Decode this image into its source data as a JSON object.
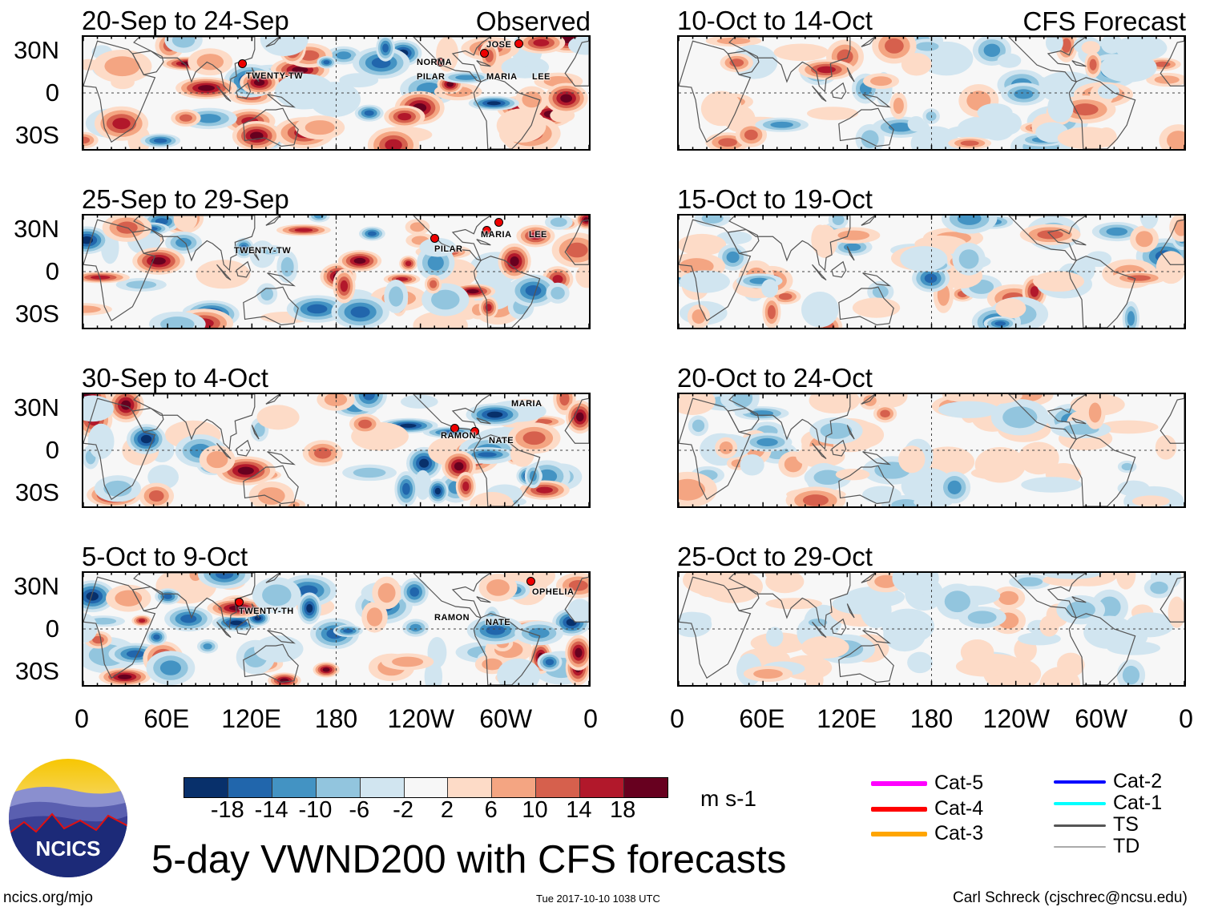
{
  "chart_data": {
    "type": "heatmap",
    "title": "5-day VWND200 with CFS forecasts",
    "variable": "200 hPa meridional wind",
    "units": "m s-1",
    "lat_ticks": [
      "30N",
      "0",
      "30S"
    ],
    "lon_ticks": [
      "0",
      "60E",
      "120E",
      "180",
      "120W",
      "60W",
      "0"
    ],
    "colorbar": {
      "levels": [
        "-18",
        "-14",
        "-10",
        "-6",
        "-2",
        "2",
        "6",
        "10",
        "14",
        "18"
      ],
      "colors": [
        "#08306b",
        "#2166ac",
        "#4393c3",
        "#92c5de",
        "#d1e5f0",
        "#f7f7f7",
        "#fddbc7",
        "#f4a582",
        "#d6604d",
        "#b2182b",
        "#67001f"
      ]
    },
    "columns": [
      {
        "label": "Observed",
        "panels": [
          {
            "title": "20-Sep to 24-Sep",
            "storms": [
              "TWENTY-TW",
              "NORMA",
              "PILAR",
              "JOSE",
              "MARIA",
              "LEE"
            ]
          },
          {
            "title": "25-Sep to 29-Sep",
            "storms": [
              "TWENTY-TW",
              "PILAR",
              "MARIA",
              "LEE"
            ]
          },
          {
            "title": "30-Sep to 4-Oct",
            "storms": [
              "MARIA",
              "RAMON",
              "NATE"
            ]
          },
          {
            "title": "5-Oct to 9-Oct",
            "storms": [
              "TWENTY-TH",
              "RAMON",
              "NATE",
              "OPHELIA"
            ]
          }
        ]
      },
      {
        "label": "CFS Forecast",
        "panels": [
          {
            "title": "10-Oct to 14-Oct",
            "storms": []
          },
          {
            "title": "15-Oct to 19-Oct",
            "storms": []
          },
          {
            "title": "20-Oct to 24-Oct",
            "storms": []
          },
          {
            "title": "25-Oct to 29-Oct",
            "storms": []
          }
        ]
      }
    ],
    "legend": [
      {
        "label": "Cat-5",
        "color": "#ff00ff"
      },
      {
        "label": "Cat-4",
        "color": "#ff0000"
      },
      {
        "label": "Cat-3",
        "color": "#ffa500"
      },
      {
        "label": "Cat-2",
        "color": "#0000ff"
      },
      {
        "label": "Cat-1",
        "color": "#00ffff"
      },
      {
        "label": "TS",
        "color": "#555555"
      },
      {
        "label": "TD",
        "color": "#aaaaaa"
      }
    ]
  },
  "logo": {
    "text": "NCICS"
  },
  "footer": {
    "left": "ncics.org/mjo",
    "center": "Tue 2017-10-10 1038 UTC",
    "right": "Carl Schreck (cjschrec@ncsu.edu)"
  }
}
